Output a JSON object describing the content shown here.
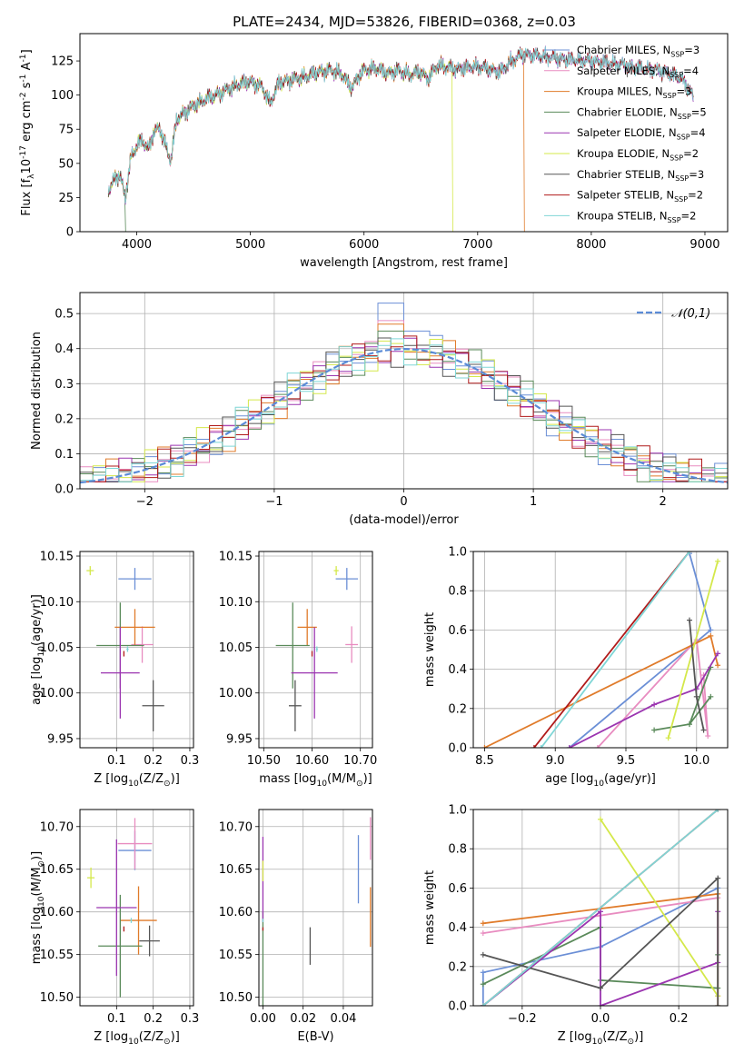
{
  "figure": {
    "title": "PLATE=2434, MJD=53826, FIBERID=0368, z=0.03"
  },
  "series_styles": [
    {
      "name": "Chabrier MILES, N$_{SSP}$=3",
      "color": "#6b8fd6"
    },
    {
      "name": "Salpeter MILES, N$_{SSP}$=4",
      "color": "#e88cc0"
    },
    {
      "name": "Kroupa MILES, N$_{SSP}$=3",
      "color": "#e07b2a"
    },
    {
      "name": "Chabrier ELODIE, N$_{SSP}$=5",
      "color": "#5a8a5a"
    },
    {
      "name": "Salpeter ELODIE, N$_{SSP}$=4",
      "color": "#9b35b0"
    },
    {
      "name": "Kroupa ELODIE, N$_{SSP}$=2",
      "color": "#d4e84a"
    },
    {
      "name": "Chabrier STELIB, N$_{SSP}$=3",
      "color": "#555555"
    },
    {
      "name": "Salpeter STELIB, N$_{SSP}$=2",
      "color": "#b01a1a"
    },
    {
      "name": "Kroupa STELIB, N$_{SSP}$=2",
      "color": "#7fd6d6"
    }
  ],
  "chart_data": [
    {
      "id": "spectrum",
      "type": "line",
      "xlabel": "wavelength [Angstrom, rest frame]",
      "ylabel": "Flux [f$_\\lambda$10$^{-17}$ erg cm$^{-2}$ s$^{-1}$ A$^{-1}$]",
      "xlim": [
        3500,
        9200
      ],
      "ylim": [
        0,
        145
      ],
      "xticks": [
        4000,
        5000,
        6000,
        7000,
        8000,
        9000
      ],
      "yticks": [
        0,
        25,
        50,
        75,
        100,
        125
      ],
      "grid": false,
      "legend": "top-right",
      "x": [
        3750,
        3800,
        3850,
        3900,
        3950,
        4000,
        4050,
        4100,
        4150,
        4200,
        4250,
        4300,
        4350,
        4400,
        4500,
        4600,
        4700,
        4800,
        4900,
        5000,
        5100,
        5175,
        5250,
        5400,
        5500,
        5600,
        5700,
        5800,
        5890,
        5950,
        6000,
        6100,
        6200,
        6300,
        6400,
        6500,
        6563,
        6650,
        6800,
        7000,
        7200,
        7300,
        7400,
        7600,
        7800,
        8000,
        8200,
        8400,
        8600,
        8800,
        8900
      ],
      "y": [
        30,
        38,
        42,
        25,
        55,
        63,
        67,
        60,
        73,
        76,
        64,
        52,
        82,
        86,
        92,
        97,
        100,
        104,
        108,
        110,
        106,
        94,
        109,
        112,
        114,
        117,
        118,
        116,
        105,
        114,
        118,
        120,
        116,
        118,
        115,
        117,
        112,
        122,
        119,
        121,
        117,
        125,
        130,
        128,
        126,
        125,
        123,
        120,
        118,
        112,
        98
      ],
      "dropouts": [
        {
          "series": 3,
          "x": 3900
        },
        {
          "series": 5,
          "x": 6780
        },
        {
          "series": 2,
          "x": 7410
        }
      ]
    },
    {
      "id": "residuals",
      "type": "histogram",
      "xlabel": "(data-model)/error",
      "ylabel": "Normed distribution",
      "xlim": [
        -2.5,
        2.5
      ],
      "ylim": [
        0,
        0.56
      ],
      "xticks": [
        -2,
        -1,
        0,
        1,
        2
      ],
      "yticks": [
        0.0,
        0.1,
        0.2,
        0.3,
        0.4,
        0.5
      ],
      "grid": true,
      "legend": "top-right",
      "reference_curve": {
        "name": "$\\mathcal{N}(0,1)$",
        "mean": 0,
        "sd": 1,
        "color": "#5a8bd6"
      },
      "bin_width": 0.1,
      "bin_start": -2.5,
      "peak_bars": [
        0.53,
        0.48,
        0.47,
        0.45
      ]
    },
    {
      "id": "age_vs_Z",
      "type": "scatter",
      "xlabel": "Z [log$_{10}$($Z/Z_\\odot$)]",
      "ylabel": "age  [log$_{10}$($age/yr$)]",
      "xlim": [
        0.0,
        0.31
      ],
      "ylim": [
        9.94,
        10.155
      ],
      "xticks": [
        0.1,
        0.2,
        0.3
      ],
      "yticks": [
        9.95,
        10.0,
        10.05,
        10.1,
        10.15
      ],
      "grid": true,
      "points": [
        {
          "series": 0,
          "x": 0.15,
          "y": 10.125,
          "xerr": 0.045,
          "yerr": 0.012
        },
        {
          "series": 1,
          "x": 0.17,
          "y": 10.053,
          "xerr": 0.03,
          "yerr": 0.02
        },
        {
          "series": 2,
          "x": 0.15,
          "y": 10.072,
          "xerr": 0.055,
          "yerr": 0.02
        },
        {
          "series": 3,
          "x": 0.11,
          "y": 10.052,
          "xerr": 0.065,
          "yerr": 0.047
        },
        {
          "series": 4,
          "x": 0.11,
          "y": 10.022,
          "xerr": 0.053,
          "yerr": 0.05
        },
        {
          "series": 5,
          "x": 0.028,
          "y": 10.134,
          "xerr": 0.01,
          "yerr": 0.005
        },
        {
          "series": 6,
          "x": 0.2,
          "y": 9.986,
          "xerr": 0.03,
          "yerr": 0.028
        },
        {
          "series": 7,
          "x": 0.12,
          "y": 10.043,
          "xerr": 0.0,
          "yerr": 0.003
        },
        {
          "series": 8,
          "x": 0.13,
          "y": 10.048,
          "xerr": 0.003,
          "yerr": 0.003
        }
      ]
    },
    {
      "id": "age_vs_mass",
      "type": "scatter",
      "xlabel": "mass [log$_{10}$($M/M_\\odot$)]",
      "ylabel": "",
      "xlim": [
        10.49,
        10.725
      ],
      "ylim": [
        9.94,
        10.155
      ],
      "xticks": [
        10.5,
        10.6,
        10.7
      ],
      "yticks": [
        9.95,
        10.0,
        10.05,
        10.1,
        10.15
      ],
      "grid": true,
      "points": [
        {
          "series": 0,
          "x": 10.672,
          "y": 10.125,
          "xerr": 0.023,
          "yerr": 0.012
        },
        {
          "series": 1,
          "x": 10.682,
          "y": 10.053,
          "xerr": 0.013,
          "yerr": 0.02
        },
        {
          "series": 2,
          "x": 10.59,
          "y": 10.072,
          "xerr": 0.02,
          "yerr": 0.02
        },
        {
          "series": 3,
          "x": 10.56,
          "y": 10.052,
          "xerr": 0.035,
          "yerr": 0.047
        },
        {
          "series": 4,
          "x": 10.605,
          "y": 10.022,
          "xerr": 0.048,
          "yerr": 0.05
        },
        {
          "series": 5,
          "x": 10.65,
          "y": 10.134,
          "xerr": 0.005,
          "yerr": 0.005
        },
        {
          "series": 6,
          "x": 10.565,
          "y": 9.986,
          "xerr": 0.013,
          "yerr": 0.028
        },
        {
          "series": 7,
          "x": 10.6,
          "y": 10.043,
          "xerr": 0.0,
          "yerr": 0.003
        },
        {
          "series": 8,
          "x": 10.61,
          "y": 10.048,
          "xerr": 0.002,
          "yerr": 0.003
        }
      ]
    },
    {
      "id": "weight_vs_age",
      "type": "line",
      "xlabel": "age  [log$_{10}$($age/yr$)]",
      "ylabel": "mass weight",
      "xlim": [
        8.42,
        10.22
      ],
      "ylim": [
        0.0,
        1.0
      ],
      "xticks": [
        8.5,
        9.0,
        9.5,
        10.0
      ],
      "yticks": [
        0.0,
        0.2,
        0.4,
        0.6,
        0.8,
        1.0
      ],
      "grid": true,
      "series": [
        {
          "series": 0,
          "x": [
            9.1,
            10.1,
            9.95
          ],
          "y": [
            0.0,
            0.6,
            0.99
          ]
        },
        {
          "series": 1,
          "x": [
            9.3,
            10.0,
            10.08,
            10.05
          ],
          "y": [
            0.0,
            0.55,
            0.06,
            0.37
          ]
        },
        {
          "series": 2,
          "x": [
            8.5,
            10.1,
            10.15
          ],
          "y": [
            0.0,
            0.57,
            0.42
          ]
        },
        {
          "series": 3,
          "x": [
            9.7,
            9.95,
            10.1,
            9.95,
            10.1
          ],
          "y": [
            0.09,
            0.12,
            0.26,
            0.12,
            0.41
          ]
        },
        {
          "series": 4,
          "x": [
            9.1,
            9.7,
            10.0,
            10.15
          ],
          "y": [
            0.0,
            0.22,
            0.3,
            0.48
          ]
        },
        {
          "series": 5,
          "x": [
            9.8,
            10.15
          ],
          "y": [
            0.05,
            0.95
          ]
        },
        {
          "series": 6,
          "x": [
            9.95,
            10.0,
            10.05
          ],
          "y": [
            0.65,
            0.26,
            0.09
          ]
        },
        {
          "series": 7,
          "x": [
            8.85,
            9.95
          ],
          "y": [
            0.0,
            1.0
          ]
        },
        {
          "series": 8,
          "x": [
            8.9,
            9.95
          ],
          "y": [
            0.0,
            1.0
          ]
        }
      ]
    },
    {
      "id": "mass_vs_Z",
      "type": "scatter",
      "xlabel": "Z [log$_{10}$($Z/Z_\\odot$)]",
      "ylabel": "mass [log$_{10}$($M/M_\\odot$)]",
      "xlim": [
        0.0,
        0.31
      ],
      "ylim": [
        10.49,
        10.72
      ],
      "xticks": [
        0.1,
        0.2,
        0.3
      ],
      "yticks": [
        10.5,
        10.55,
        10.6,
        10.65,
        10.7
      ],
      "grid": true,
      "points": [
        {
          "series": 0,
          "x": 0.15,
          "y": 10.672,
          "xerr": 0.045,
          "yerr": 0.023
        },
        {
          "series": 1,
          "x": 0.15,
          "y": 10.68,
          "xerr": 0.047,
          "yerr": 0.03
        },
        {
          "series": 2,
          "x": 0.16,
          "y": 10.59,
          "xerr": 0.05,
          "yerr": 0.04
        },
        {
          "series": 3,
          "x": 0.11,
          "y": 10.56,
          "xerr": 0.06,
          "yerr": 0.06
        },
        {
          "series": 4,
          "x": 0.1,
          "y": 10.605,
          "xerr": 0.055,
          "yerr": 0.08
        },
        {
          "series": 5,
          "x": 0.03,
          "y": 10.64,
          "xerr": 0.01,
          "yerr": 0.012
        },
        {
          "series": 6,
          "x": 0.19,
          "y": 10.566,
          "xerr": 0.028,
          "yerr": 0.018
        },
        {
          "series": 7,
          "x": 0.12,
          "y": 10.58,
          "xerr": 0.0,
          "yerr": 0.003
        },
        {
          "series": 8,
          "x": 0.14,
          "y": 10.59,
          "xerr": 0.002,
          "yerr": 0.003
        }
      ]
    },
    {
      "id": "mass_vs_ebv",
      "type": "scatter",
      "xlabel": "E(B-V)",
      "ylabel": "",
      "xlim": [
        -0.002,
        0.0545
      ],
      "ylim": [
        10.49,
        10.72
      ],
      "xticks": [
        0.0,
        0.02,
        0.04
      ],
      "yticks": [
        10.5,
        10.55,
        10.6,
        10.65,
        10.7
      ],
      "grid": true,
      "points": [
        {
          "series": 0,
          "x": 0.0475,
          "y": 10.65,
          "xerr": 0.0,
          "yerr": 0.04
        },
        {
          "series": 1,
          "x": 0.0535,
          "y": 10.686,
          "xerr": 0.0,
          "yerr": 0.025
        },
        {
          "series": 2,
          "x": 0.0535,
          "y": 10.594,
          "xerr": 0.0,
          "yerr": 0.035
        },
        {
          "series": 3,
          "x": 0.0,
          "y": 10.545,
          "xerr": 0.0,
          "yerr": 0.055
        },
        {
          "series": 4,
          "x": 0.0,
          "y": 10.638,
          "xerr": 0.0,
          "yerr": 0.05
        },
        {
          "series": 5,
          "x": 0.0,
          "y": 10.648,
          "xerr": 0.0,
          "yerr": 0.012
        },
        {
          "series": 6,
          "x": 0.0235,
          "y": 10.56,
          "xerr": 0.0,
          "yerr": 0.022
        },
        {
          "series": 7,
          "x": 0.0,
          "y": 10.58,
          "xerr": 0.0,
          "yerr": 0.002
        },
        {
          "series": 8,
          "x": 0.0,
          "y": 10.59,
          "xerr": 0.0,
          "yerr": 0.002
        }
      ]
    },
    {
      "id": "weight_vs_Z",
      "type": "line",
      "xlabel": "Z [log$_{10}$($Z/Z_\\odot$)]",
      "ylabel": "mass weight",
      "xlim": [
        -0.325,
        0.325
      ],
      "ylim": [
        0.0,
        1.0
      ],
      "xticks": [
        -0.2,
        0.0,
        0.2
      ],
      "yticks": [
        0.0,
        0.2,
        0.4,
        0.6,
        0.8,
        1.0
      ],
      "grid": true,
      "series": [
        {
          "series": 0,
          "x": [
            -0.3,
            -0.3,
            0.0,
            0.3
          ],
          "y": [
            0.0,
            0.17,
            0.3,
            0.6
          ]
        },
        {
          "series": 1,
          "x": [
            -0.3,
            0.3,
            0.3
          ],
          "y": [
            0.37,
            0.55,
            0.05
          ]
        },
        {
          "series": 2,
          "x": [
            -0.3,
            0.3,
            0.3
          ],
          "y": [
            0.42,
            0.57,
            0.0
          ]
        },
        {
          "series": 3,
          "x": [
            -0.3,
            0.0,
            0.0,
            0.3,
            0.3
          ],
          "y": [
            0.11,
            0.4,
            0.13,
            0.09,
            0.26
          ]
        },
        {
          "series": 4,
          "x": [
            -0.3,
            0.0,
            0.0,
            0.3,
            0.3
          ],
          "y": [
            0.0,
            0.48,
            0.0,
            0.22,
            0.48
          ]
        },
        {
          "series": 5,
          "x": [
            0.0,
            0.3
          ],
          "y": [
            0.95,
            0.05
          ]
        },
        {
          "series": 6,
          "x": [
            -0.3,
            0.0,
            0.3,
            0.3
          ],
          "y": [
            0.26,
            0.09,
            0.65,
            0.0
          ]
        },
        {
          "series": 7,
          "x": [
            -0.3,
            0.3
          ],
          "y": [
            0.0,
            1.0
          ]
        },
        {
          "series": 8,
          "x": [
            -0.3,
            0.3
          ],
          "y": [
            0.0,
            1.0
          ]
        }
      ]
    }
  ]
}
